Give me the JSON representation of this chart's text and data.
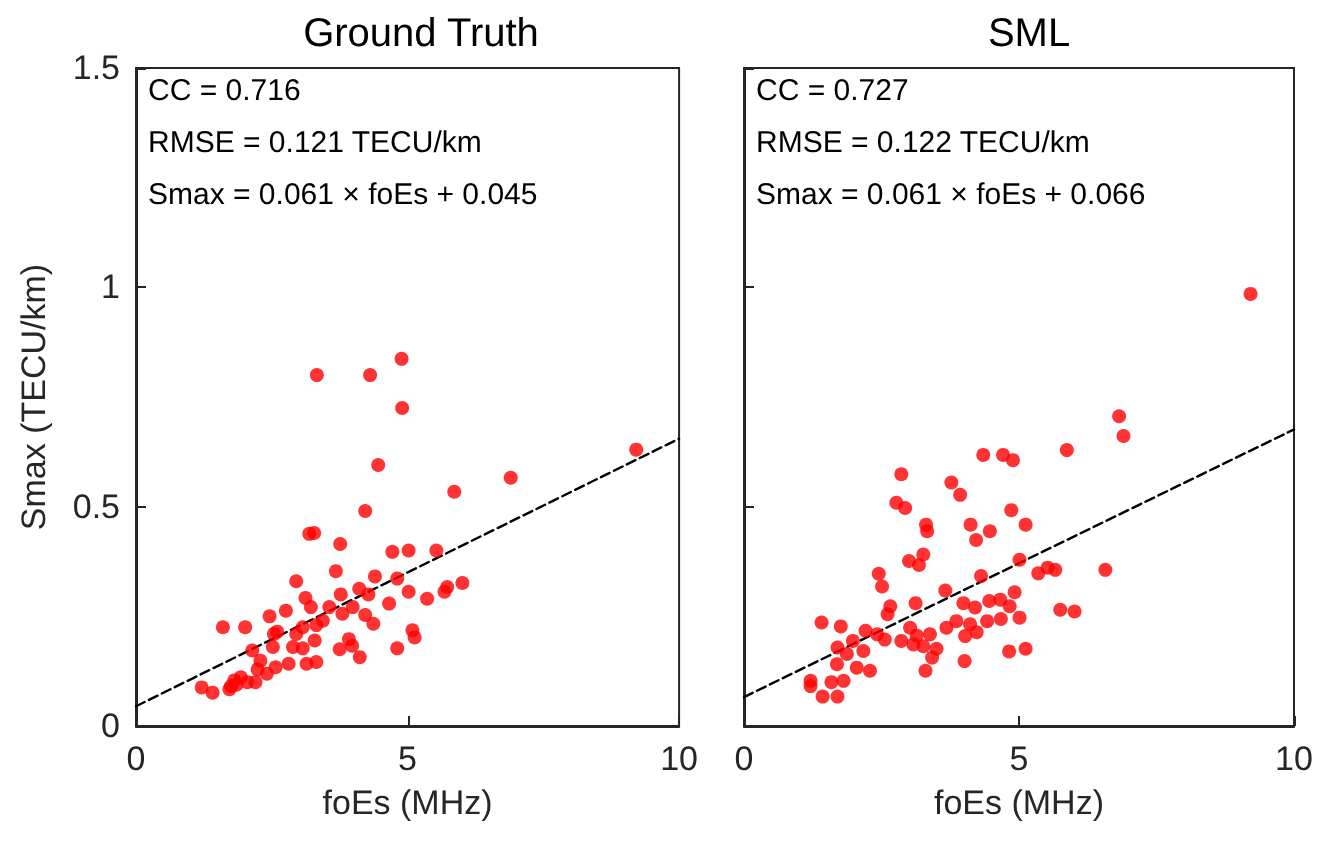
{
  "chart_data": [
    {
      "type": "scatter",
      "title": "Ground Truth",
      "xlabel": "foEs (MHz)",
      "ylabel": "Smax (TECU/km)",
      "annotations": [
        "CC = 0.716",
        "RMSE = 0.121 TECU/km",
        "Smax = 0.061 × foEs + 0.045"
      ],
      "xlim": [
        0,
        10
      ],
      "xticks": [
        0,
        5,
        10
      ],
      "ylim": [
        0,
        1.5
      ],
      "yticks": [
        0,
        0.5,
        1,
        1.5
      ],
      "grid": false,
      "marker": "circle",
      "series": [
        {
          "color": "#ff0000",
          "x": [
            4.89,
            3.33,
            4.31,
            4.9,
            4.46,
            9.21,
            6.9,
            5.86,
            4.22,
            3.19,
            3.28,
            3.76,
            4.72,
            5.02,
            5.53,
            2.95,
            3.68,
            4.4,
            4.81,
            6.01,
            5.73,
            5.68,
            5.36,
            5.02,
            4.66,
            4.11,
            4.28,
            3.77,
            3.12,
            3.22,
            3.56,
            3.99,
            2.76,
            2.46,
            3.8,
            4.22,
            4.37,
            3.44,
            3.32,
            3.07,
            1.6,
            2.01,
            2.6,
            2.54,
            2.95,
            5.09,
            5.13,
            3.92,
            3.98,
            3.29,
            2.89,
            3.07,
            2.14,
            2.52,
            3.75,
            4.81,
            4.12,
            2.29,
            2.81,
            3.14,
            3.32,
            2.57,
            2.24,
            2.41,
            1.93,
            2.05,
            1.81,
            1.75,
            2.2,
            1.21,
            1.41,
            1.72,
            1.85
          ],
          "values": [
            0.837,
            0.8,
            0.8,
            0.725,
            0.595,
            0.63,
            0.566,
            0.534,
            0.49,
            0.438,
            0.44,
            0.415,
            0.397,
            0.4,
            0.4,
            0.33,
            0.353,
            0.341,
            0.336,
            0.326,
            0.317,
            0.306,
            0.29,
            0.306,
            0.279,
            0.313,
            0.3,
            0.3,
            0.292,
            0.271,
            0.271,
            0.271,
            0.263,
            0.25,
            0.256,
            0.253,
            0.233,
            0.24,
            0.23,
            0.225,
            0.225,
            0.225,
            0.215,
            0.21,
            0.21,
            0.218,
            0.202,
            0.198,
            0.183,
            0.195,
            0.18,
            0.177,
            0.172,
            0.18,
            0.175,
            0.177,
            0.157,
            0.149,
            0.142,
            0.142,
            0.146,
            0.134,
            0.129,
            0.119,
            0.111,
            0.1,
            0.104,
            0.091,
            0.1,
            0.088,
            0.076,
            0.084,
            0.094
          ]
        },
        {
          "type": "line",
          "color": "#000000",
          "line_style": "dashed",
          "marker": "none",
          "x": [
            0,
            10
          ],
          "values": [
            0.045,
            0.655
          ]
        }
      ]
    },
    {
      "type": "scatter",
      "title": "SML",
      "xlabel": "foEs (MHz)",
      "tick_labels": "x",
      "annotations": [
        "CC = 0.727",
        "RMSE = 0.122 TECU/km",
        "Smax = 0.061 × foEs + 0.066"
      ],
      "xlim": [
        0,
        10
      ],
      "xticks": [
        0,
        5,
        10
      ],
      "ylim": [
        0,
        1.5
      ],
      "yticks": [
        0,
        0.5,
        1,
        1.5
      ],
      "grid": false,
      "marker": "circle",
      "series": [
        {
          "color": "#ff0000",
          "x": [
            9.21,
            6.82,
            6.9,
            5.87,
            4.35,
            4.71,
            4.89,
            2.86,
            3.77,
            3.93,
            2.77,
            2.93,
            4.86,
            3.31,
            3.33,
            4.12,
            4.47,
            5.12,
            4.22,
            3.26,
            3.0,
            3.18,
            5.01,
            2.45,
            2.51,
            4.31,
            5.35,
            5.52,
            5.66,
            6.57,
            3.66,
            4.92,
            2.66,
            2.61,
            3.12,
            3.99,
            4.2,
            4.46,
            4.66,
            4.83,
            5.75,
            6.01,
            1.41,
            1.76,
            2.21,
            1.98,
            1.7,
            1.87,
            2.17,
            2.42,
            2.56,
            3.02,
            3.14,
            3.38,
            2.86,
            3.08,
            3.26,
            3.5,
            3.68,
            3.86,
            4.11,
            4.02,
            4.23,
            4.42,
            4.67,
            5.01,
            3.42,
            3.3,
            4.01,
            4.82,
            5.12,
            1.69,
            1.21,
            1.59,
            1.81,
            1.43,
            1.7,
            1.21,
            2.05,
            2.29
          ],
          "values": [
            0.985,
            0.706,
            0.661,
            0.629,
            0.618,
            0.618,
            0.606,
            0.574,
            0.555,
            0.527,
            0.509,
            0.497,
            0.492,
            0.459,
            0.444,
            0.459,
            0.444,
            0.459,
            0.424,
            0.391,
            0.376,
            0.367,
            0.379,
            0.347,
            0.318,
            0.342,
            0.348,
            0.361,
            0.356,
            0.356,
            0.309,
            0.305,
            0.273,
            0.255,
            0.28,
            0.28,
            0.27,
            0.285,
            0.288,
            0.273,
            0.265,
            0.261,
            0.236,
            0.227,
            0.217,
            0.194,
            0.179,
            0.164,
            0.171,
            0.209,
            0.197,
            0.224,
            0.206,
            0.209,
            0.194,
            0.186,
            0.182,
            0.176,
            0.224,
            0.239,
            0.232,
            0.205,
            0.214,
            0.239,
            0.244,
            0.247,
            0.156,
            0.126,
            0.148,
            0.17,
            0.176,
            0.141,
            0.103,
            0.1,
            0.103,
            0.067,
            0.067,
            0.091,
            0.133,
            0.126
          ]
        },
        {
          "type": "line",
          "color": "#000000",
          "line_style": "dashed",
          "marker": "none",
          "x": [
            0,
            10
          ],
          "values": [
            0.066,
            0.676
          ]
        }
      ]
    }
  ]
}
